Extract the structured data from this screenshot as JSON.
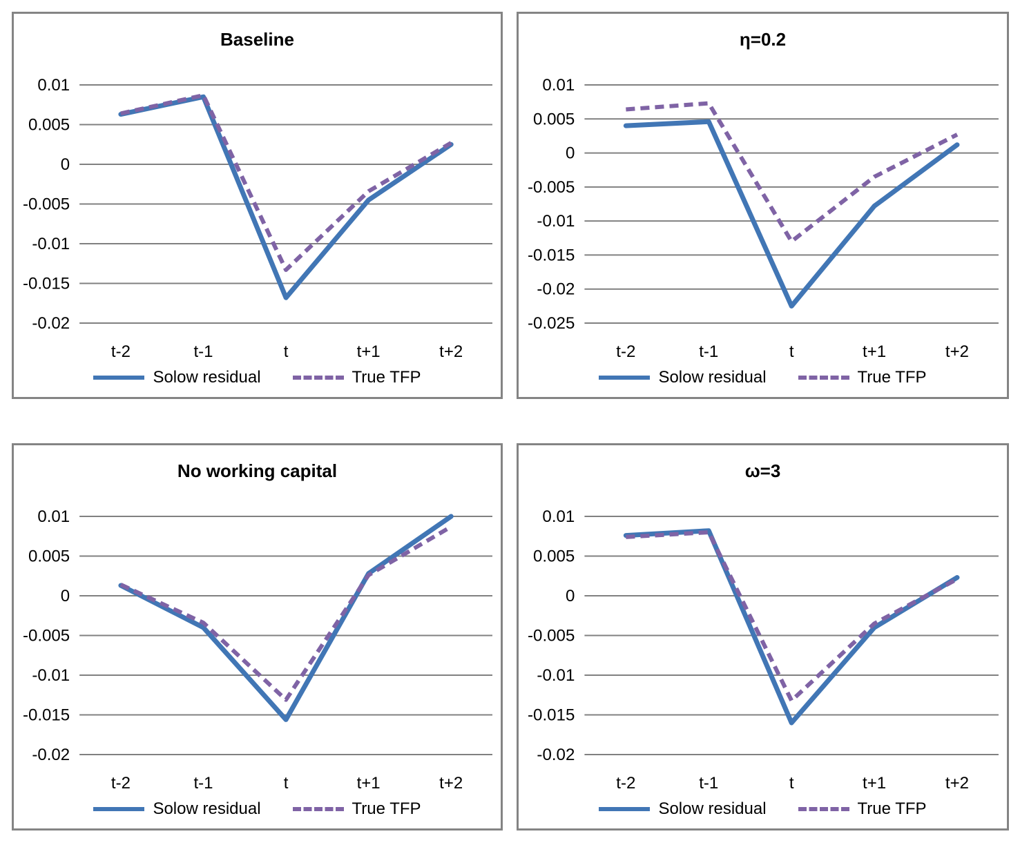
{
  "page": {
    "background": "#ffffff"
  },
  "colors": {
    "solow": "#4176b5",
    "tfp": "#7f63a5",
    "gridline": "#808080",
    "panel_border": "#848484",
    "text": "#000000"
  },
  "chart_data": [
    {
      "type": "line",
      "title": "Baseline",
      "categories": [
        "t-2",
        "t-1",
        "t",
        "t+1",
        "t+2"
      ],
      "series": [
        {
          "name": "Solow residual",
          "style": "solid",
          "color": "#4176b5",
          "values": [
            0.0063,
            0.0085,
            -0.0168,
            -0.0045,
            0.0025
          ]
        },
        {
          "name": "True TFP",
          "style": "dashed",
          "color": "#7f63a5",
          "values": [
            0.0064,
            0.0087,
            -0.0133,
            -0.0034,
            0.0027
          ]
        }
      ],
      "y_tick_labels": [
        "0.01",
        "0.005",
        "0",
        "-0.005",
        "-0.01",
        "-0.015",
        "-0.02"
      ],
      "y_tick_values": [
        0.01,
        0.005,
        0,
        -0.005,
        -0.01,
        -0.015,
        -0.02
      ],
      "ylim": [
        -0.02,
        0.01
      ],
      "grid": true,
      "legend_position": "bottom"
    },
    {
      "type": "line",
      "title": "η=0.2",
      "categories": [
        "t-2",
        "t-1",
        "t",
        "t+1",
        "t+2"
      ],
      "series": [
        {
          "name": "Solow residual",
          "style": "solid",
          "color": "#4176b5",
          "values": [
            0.004,
            0.0046,
            -0.0225,
            -0.0078,
            0.0012
          ]
        },
        {
          "name": "True TFP",
          "style": "dashed",
          "color": "#7f63a5",
          "values": [
            0.0064,
            0.0073,
            -0.013,
            -0.0035,
            0.0027
          ]
        }
      ],
      "y_tick_labels": [
        "0.01",
        "0.005",
        "0",
        "-0.005",
        "-0.01",
        "-0.015",
        "-0.02",
        "-0.025"
      ],
      "y_tick_values": [
        0.01,
        0.005,
        0,
        -0.005,
        -0.01,
        -0.015,
        -0.02,
        -0.025
      ],
      "ylim": [
        -0.025,
        0.01
      ],
      "grid": true,
      "legend_position": "bottom"
    },
    {
      "type": "line",
      "title": "No working capital",
      "categories": [
        "t-2",
        "t-1",
        "t",
        "t+1",
        "t+2"
      ],
      "series": [
        {
          "name": "Solow residual",
          "style": "solid",
          "color": "#4176b5",
          "values": [
            0.0013,
            -0.004,
            -0.0156,
            0.0028,
            0.01
          ]
        },
        {
          "name": "True TFP",
          "style": "dashed",
          "color": "#7f63a5",
          "values": [
            0.0014,
            -0.0034,
            -0.0131,
            0.0026,
            0.0087
          ]
        }
      ],
      "y_tick_labels": [
        "0.01",
        "0.005",
        "0",
        "-0.005",
        "-0.01",
        "-0.015",
        "-0.02"
      ],
      "y_tick_values": [
        0.01,
        0.005,
        0,
        -0.005,
        -0.01,
        -0.015,
        -0.02
      ],
      "ylim": [
        -0.02,
        0.01
      ],
      "grid": true,
      "legend_position": "bottom"
    },
    {
      "type": "line",
      "title": "ω=3",
      "categories": [
        "t-2",
        "t-1",
        "t",
        "t+1",
        "t+2"
      ],
      "series": [
        {
          "name": "Solow residual",
          "style": "solid",
          "color": "#4176b5",
          "values": [
            0.0076,
            0.0082,
            -0.016,
            -0.004,
            0.0023
          ]
        },
        {
          "name": "True TFP",
          "style": "dashed",
          "color": "#7f63a5",
          "values": [
            0.0074,
            0.008,
            -0.0132,
            -0.0035,
            0.0021
          ]
        }
      ],
      "y_tick_labels": [
        "0.01",
        "0.005",
        "0",
        "-0.005",
        "-0.01",
        "-0.015",
        "-0.02"
      ],
      "y_tick_values": [
        0.01,
        0.005,
        0,
        -0.005,
        -0.01,
        -0.015,
        -0.02
      ],
      "ylim": [
        -0.02,
        0.01
      ],
      "grid": true,
      "legend_position": "bottom"
    }
  ]
}
